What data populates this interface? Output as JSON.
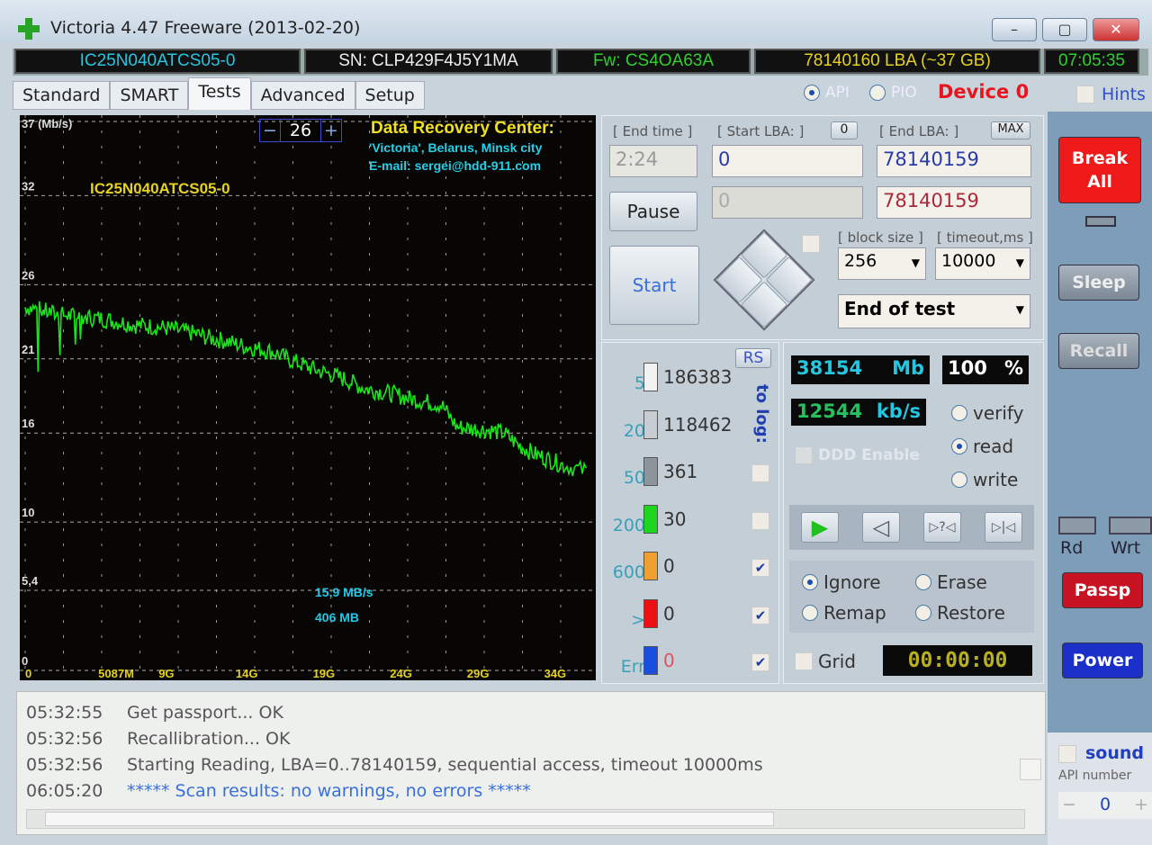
{
  "window": {
    "title": "Victoria 4.47  Freeware (2013-02-20)",
    "minimize": "–",
    "maximize": "▢",
    "close": "✕"
  },
  "infobar": {
    "model": "IC25N040ATCS05-0",
    "serial": "SN: CLP429F4J5Y1MA",
    "firmware": "Fw: CS4OA63A",
    "capacity": "78140160 LBA (~37 GB)",
    "clock": "07:05:35"
  },
  "tabs": [
    "Standard",
    "SMART",
    "Tests",
    "Advanced",
    "Setup"
  ],
  "active_tab": "Tests",
  "mode": {
    "api": "API",
    "pio": "PIO",
    "device": "Device 0",
    "hints": "Hints"
  },
  "chart_data": {
    "type": "line",
    "ylabel": "37 (Mb/s)",
    "y_ticks": [
      "37 (Mb/s)",
      "32",
      "26",
      "21",
      "16",
      "10",
      "5,4",
      "0"
    ],
    "ylim": [
      0,
      37
    ],
    "x_ticks": [
      "0",
      "5087M",
      "9G",
      "14G",
      "19G",
      "24G",
      "29G",
      "34G"
    ],
    "x_unit": "GB",
    "xlim": [
      0,
      37
    ],
    "grid": true,
    "series": [
      {
        "color": "#19e619",
        "x": [
          0,
          1,
          2,
          3,
          4,
          5,
          6,
          7,
          8,
          9,
          10,
          11,
          12,
          13,
          14,
          15,
          16,
          17,
          18,
          19,
          20,
          21,
          22,
          23,
          24,
          25,
          26,
          27,
          28,
          29,
          30,
          31,
          32,
          33,
          34,
          35,
          36.5
        ],
        "y": [
          24.5,
          24.3,
          24,
          23.9,
          23.8,
          23.7,
          23.5,
          23.3,
          23.2,
          23.1,
          22.9,
          22.7,
          22.4,
          22.2,
          21.9,
          21.7,
          21.5,
          21,
          20.6,
          20.2,
          19.9,
          19.5,
          19,
          18.8,
          18.6,
          18.3,
          18.1,
          17.9,
          16.4,
          16.3,
          16.2,
          16,
          15.2,
          14.6,
          14.2,
          13.8,
          13.4
        ]
      }
    ],
    "zoom_value": "26",
    "zoom_minus": "−",
    "zoom_plus": "+",
    "drive_label": "IC25N040ATCS05-0",
    "banner": {
      "title": "Data Recovery Center:",
      "line1": "'Victoria', Belarus, Minsk city",
      "line2": "E-mail: sergei@hdd-911.com"
    },
    "current_speed": "15,9 MB/s",
    "current_size": "406 MB"
  },
  "controls": {
    "end_time_label": "[ End time ]",
    "end_time": "2:24",
    "start_lba_label": "[ Start LBA: ]",
    "start_lba_btn": "0",
    "end_lba_label": "[ End LBA: ]",
    "max_btn": "MAX",
    "start_lba": "0",
    "end_lba": "78140159",
    "cur_lba": "0",
    "cur_end_lba": "78140159",
    "pause": "Pause",
    "start": "Start",
    "block_size_label": "[ block size ]",
    "block_size": "256",
    "timeout_label": "[ timeout,ms ]",
    "timeout": "10000",
    "end_action": "End of test"
  },
  "stats": {
    "rs": "RS",
    "to_log": "to log:",
    "rows": [
      {
        "label": "5",
        "count": "186383",
        "color": "#f2f2f2",
        "logged": null
      },
      {
        "label": "20",
        "count": "118462",
        "color": "#c8cdd3",
        "logged": null
      },
      {
        "label": "50",
        "count": "361",
        "color": "#8d949c",
        "logged": false
      },
      {
        "label": "200",
        "count": "30",
        "color": "#1ed61e",
        "logged": false
      },
      {
        "label": "600",
        "count": "0",
        "color": "#f0a030",
        "logged": true
      },
      {
        "label": ">",
        "count": "0",
        "color": "#ee1111",
        "logged": true
      },
      {
        "label": "Err",
        "count": "0",
        "color": "#1a4ee0",
        "logged": true
      }
    ]
  },
  "progress": {
    "mb": "38154",
    "mb_unit": "Mb",
    "percent": "100",
    "percent_unit": "%",
    "speed": "12544",
    "speed_unit": "kb/s",
    "ddd": "DDD Enable",
    "verify": "verify",
    "read": "read",
    "write": "write",
    "mode": "read",
    "ignore": "Ignore",
    "erase": "Erase",
    "remap": "Remap",
    "restore": "Restore",
    "action": "Ignore",
    "grid": "Grid",
    "timer": "00:00:00"
  },
  "playback": {
    "play": "▶",
    "back": "◁",
    "seek": "▷?◁",
    "end": "▷|◁"
  },
  "sidebar": {
    "break": "Break All",
    "sleep": "Sleep",
    "recall": "Recall",
    "rd": "Rd",
    "wrt": "Wrt",
    "passp": "Passp",
    "power": "Power",
    "sound": "sound",
    "api_number_label": "API number",
    "api_number": "0",
    "minus": "−",
    "plus": "+"
  },
  "log": [
    {
      "time": "05:32:55",
      "text": "Get passport... OK",
      "color": "#555"
    },
    {
      "time": "05:32:56",
      "text": "Recallibration... OK",
      "color": "#555"
    },
    {
      "time": "05:32:56",
      "text": "Starting Reading, LBA=0..78140159, sequential access, timeout 10000ms",
      "color": "#555"
    },
    {
      "time": "06:05:20",
      "text": "***** Scan results: no warnings, no errors *****",
      "color": "#3a6fd8"
    }
  ]
}
